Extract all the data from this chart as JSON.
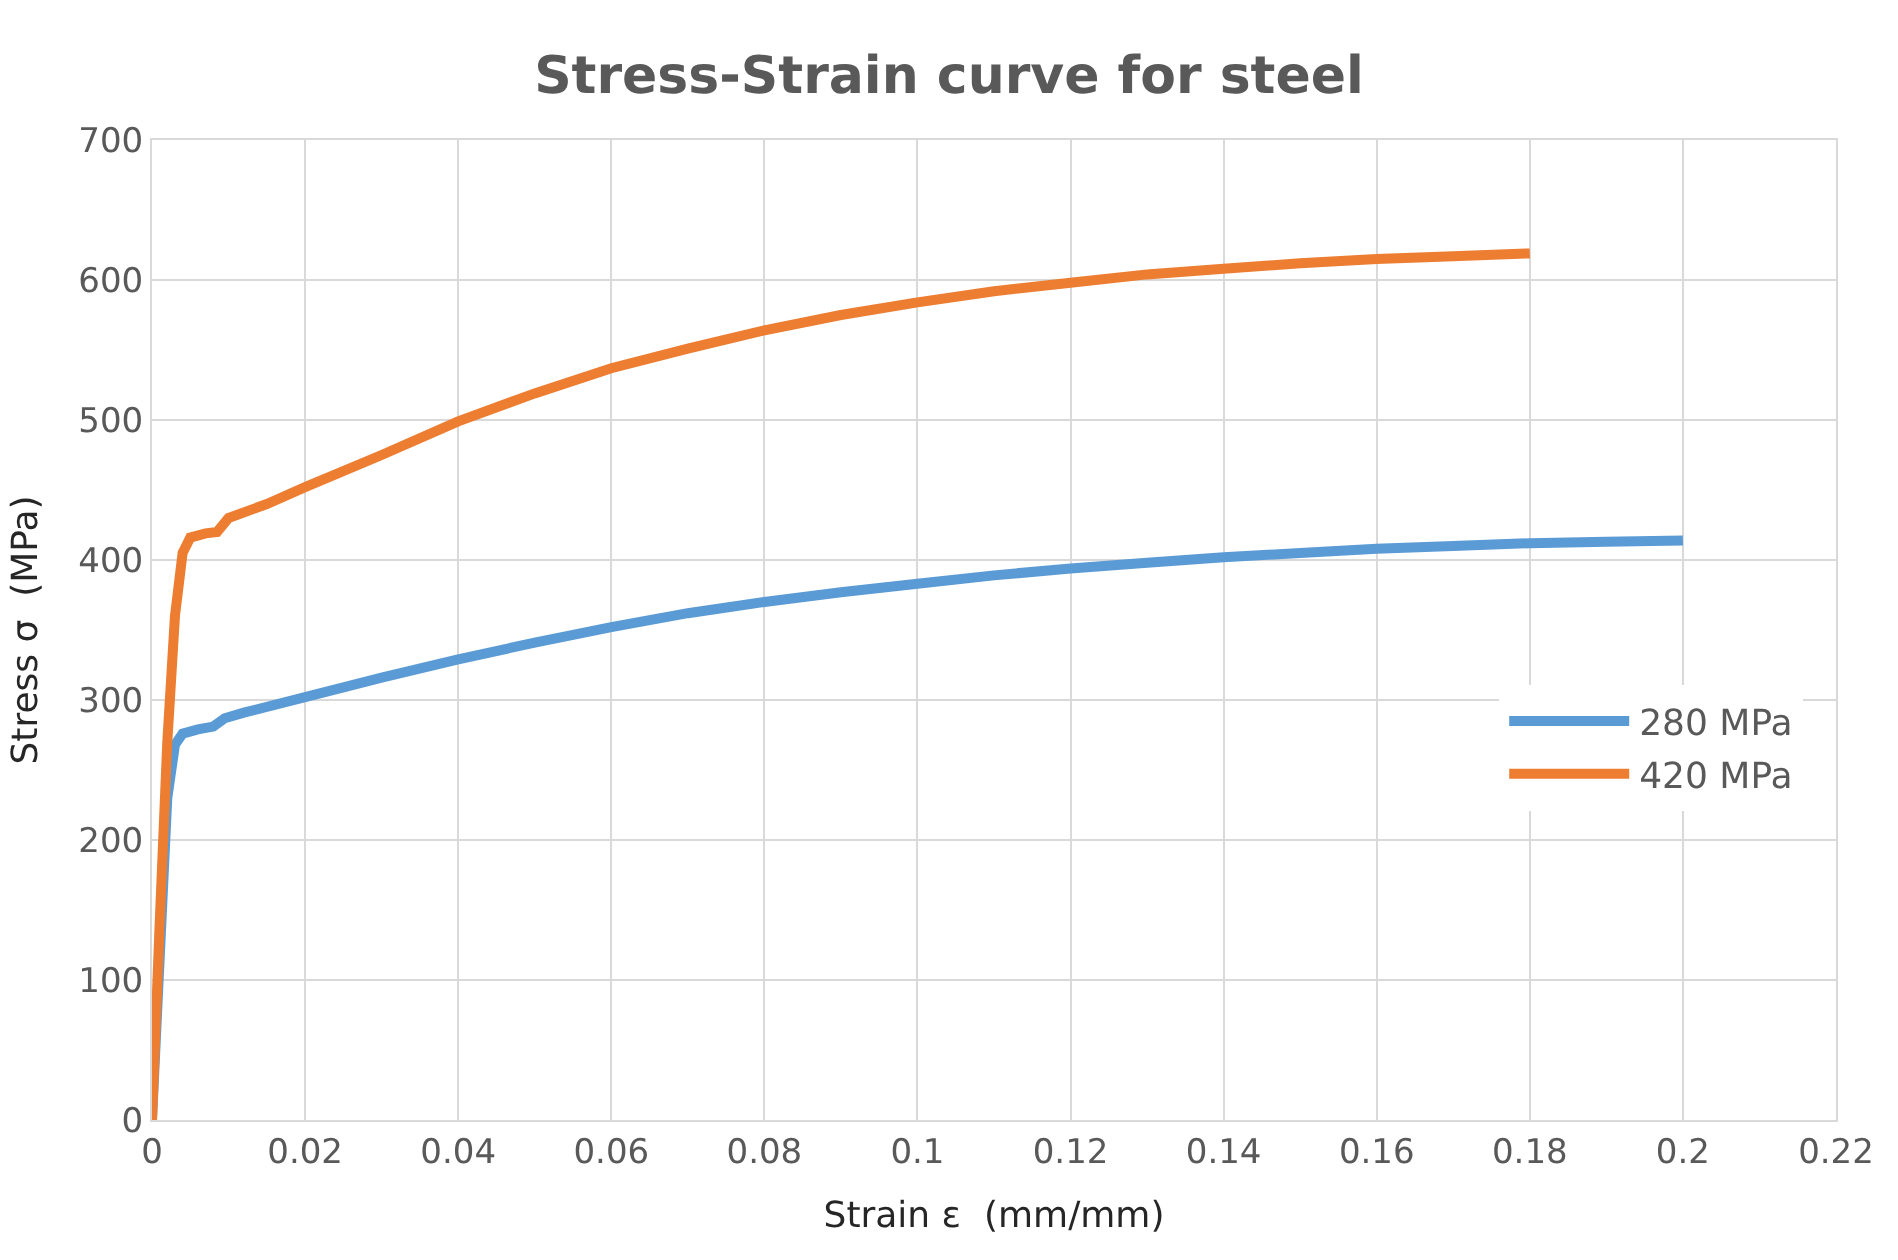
{
  "chart_data": {
    "type": "line",
    "title": "Stress-Strain curve for steel",
    "xlabel": "Strain ε  (mm/mm)",
    "ylabel": "Stress σ  (MPa)",
    "xlim": [
      0,
      0.22
    ],
    "xticks": [
      0,
      0.02,
      0.04,
      0.06,
      0.08,
      0.1,
      0.12,
      0.14,
      0.16,
      0.18,
      0.2,
      0.22
    ],
    "ylim": [
      0,
      700
    ],
    "yticks": [
      0,
      100,
      200,
      300,
      400,
      500,
      600,
      700
    ],
    "grid": true,
    "legend": "right",
    "marker": "none",
    "line_style": "solid",
    "series": [
      {
        "name": "280 MPa",
        "color": "#5b9bd5",
        "x": [
          0,
          0.002,
          0.003,
          0.004,
          0.006,
          0.008,
          0.0095,
          0.012,
          0.02,
          0.03,
          0.04,
          0.05,
          0.06,
          0.07,
          0.08,
          0.09,
          0.1,
          0.11,
          0.12,
          0.13,
          0.14,
          0.15,
          0.16,
          0.17,
          0.18,
          0.19,
          0.2
        ],
        "values": [
          0,
          230,
          268,
          276,
          279,
          281,
          287,
          291,
          302,
          316,
          329,
          341,
          352,
          362,
          370,
          377,
          383,
          389,
          394,
          398,
          402,
          405,
          408,
          410,
          412,
          413,
          414
        ]
      },
      {
        "name": "420 MPa",
        "color": "#ed7d31",
        "x": [
          0,
          0.001,
          0.002,
          0.003,
          0.004,
          0.005,
          0.007,
          0.0085,
          0.01,
          0.015,
          0.02,
          0.03,
          0.04,
          0.05,
          0.06,
          0.07,
          0.08,
          0.09,
          0.1,
          0.11,
          0.12,
          0.13,
          0.14,
          0.15,
          0.16,
          0.17,
          0.18
        ],
        "values": [
          0,
          140,
          270,
          360,
          405,
          416,
          419,
          420,
          430,
          440,
          452,
          475,
          499,
          519,
          537,
          551,
          564,
          575,
          584,
          592,
          598,
          604,
          608,
          612,
          615,
          617,
          619
        ]
      }
    ]
  }
}
